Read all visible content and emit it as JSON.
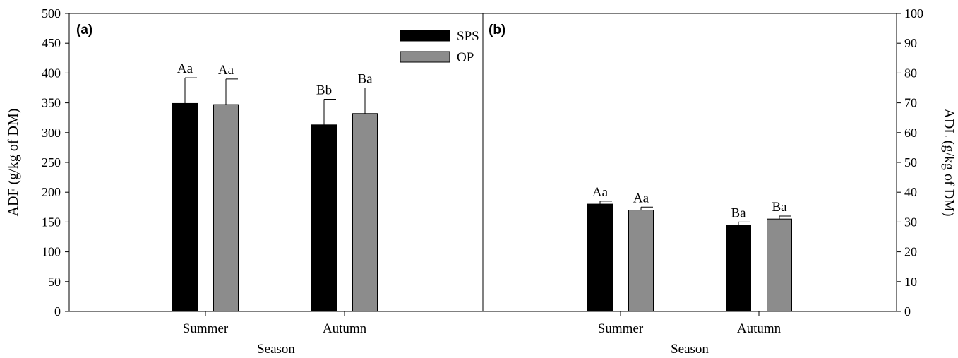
{
  "chart_data": [
    {
      "type": "bar",
      "panel": "(a)",
      "categories": [
        "Summer",
        "Autumn"
      ],
      "xlabel": "Season",
      "ylabel": "ADF (g/kg of DM)",
      "ylim": [
        0,
        500
      ],
      "yticks": [
        0,
        50,
        100,
        150,
        200,
        250,
        300,
        350,
        400,
        450,
        500
      ],
      "series": [
        {
          "name": "SPS",
          "color": "#000000",
          "values": [
            349,
            313
          ],
          "errors": [
            43,
            43
          ],
          "labels": [
            "Aa",
            "Bb"
          ]
        },
        {
          "name": "OP",
          "color": "#8c8c8c",
          "values": [
            347,
            332
          ],
          "errors": [
            43,
            43
          ],
          "labels": [
            "Aa",
            "Ba"
          ]
        }
      ],
      "legend": "top-right"
    },
    {
      "type": "bar",
      "panel": "(b)",
      "categories": [
        "Summer",
        "Autumn"
      ],
      "xlabel": "Season",
      "ylabel": "ADL (g/kg of DM)",
      "ylim": [
        0,
        100
      ],
      "yticks": [
        0,
        10,
        20,
        30,
        40,
        50,
        60,
        70,
        80,
        90,
        100
      ],
      "series": [
        {
          "name": "SPS",
          "color": "#000000",
          "values": [
            36,
            29
          ],
          "errors": [
            1,
            1
          ],
          "labels": [
            "Aa",
            "Ba"
          ]
        },
        {
          "name": "OP",
          "color": "#8c8c8c",
          "values": [
            34,
            31
          ],
          "errors": [
            1,
            1
          ],
          "labels": [
            "Aa",
            "Ba"
          ]
        }
      ]
    }
  ]
}
